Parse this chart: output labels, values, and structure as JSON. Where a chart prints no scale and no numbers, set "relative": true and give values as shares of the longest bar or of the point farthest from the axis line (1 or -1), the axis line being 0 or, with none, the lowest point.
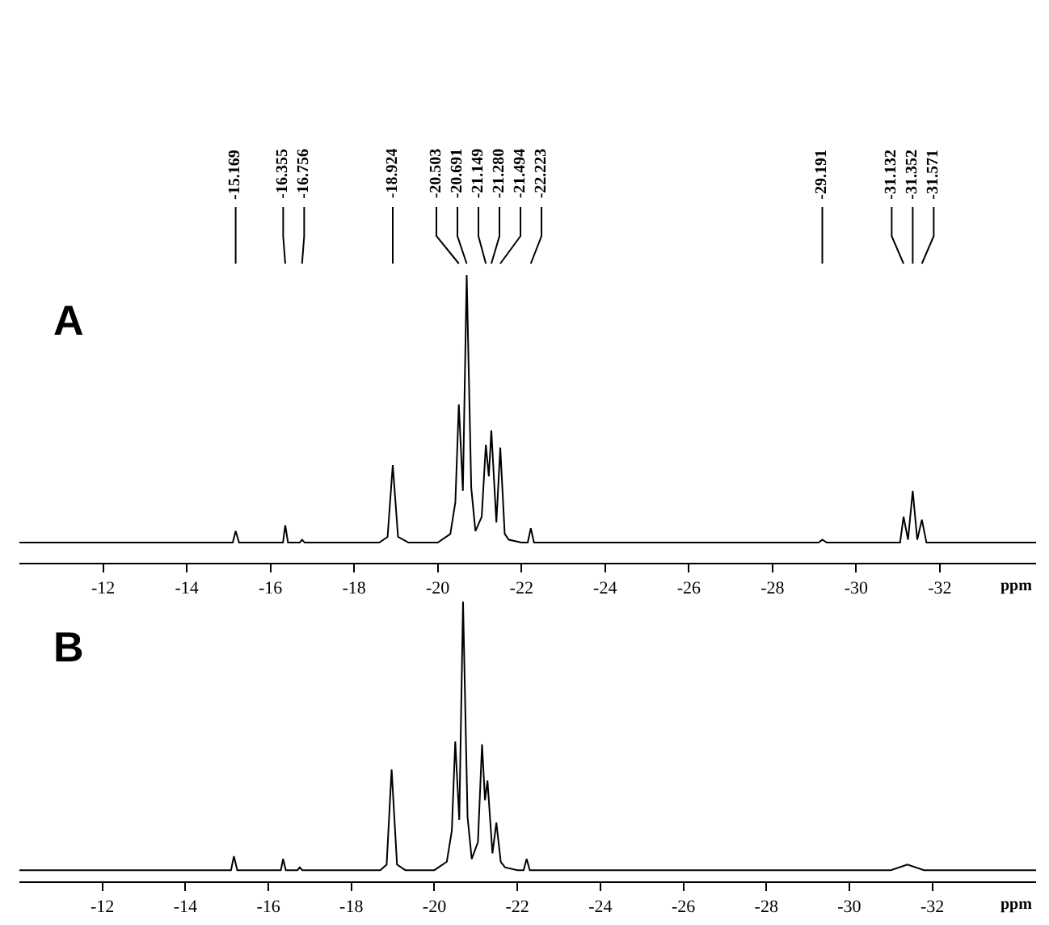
{
  "chart_data": [
    {
      "type": "line",
      "title": "A",
      "xlabel": "ppm",
      "relative": true,
      "xlim": [
        -10,
        -34.3
      ],
      "xticks": [
        -12,
        -14,
        -16,
        -18,
        -20,
        -22,
        -24,
        -26,
        -28,
        -30,
        -32
      ],
      "marker": "none",
      "line_style": "solid",
      "annotations": [
        {
          "text": "-15.169",
          "x": -15.169
        },
        {
          "text": "-16.355",
          "x": -16.355
        },
        {
          "text": "-16.756",
          "x": -16.756
        },
        {
          "text": "-18.924",
          "x": -18.924
        },
        {
          "text": "-20.503",
          "x": -20.503
        },
        {
          "text": "-20.691",
          "x": -20.691
        },
        {
          "text": "-21.149",
          "x": -21.149
        },
        {
          "text": "-21.280",
          "x": -21.28
        },
        {
          "text": "-21.494",
          "x": -21.494
        },
        {
          "text": "-22.223",
          "x": -22.223
        },
        {
          "text": "-29.191",
          "x": -29.191
        },
        {
          "text": "-31.132",
          "x": -31.132
        },
        {
          "text": "-31.352",
          "x": -31.352
        },
        {
          "text": "-31.571",
          "x": -31.571
        }
      ],
      "series": [
        {
          "color": "#000000",
          "x": [
            -10,
            -11,
            -12,
            -13,
            -14,
            -14.9,
            -15.1,
            -15.169,
            -15.25,
            -16.0,
            -16.3,
            -16.355,
            -16.42,
            -16.7,
            -16.756,
            -16.82,
            -17.5,
            -18.6,
            -18.8,
            -18.924,
            -19.05,
            -19.3,
            -20.0,
            -20.3,
            -20.42,
            -20.503,
            -20.6,
            -20.691,
            -20.8,
            -20.9,
            -21.05,
            -21.149,
            -21.22,
            -21.28,
            -21.4,
            -21.494,
            -21.6,
            -21.7,
            -22.0,
            -22.15,
            -22.223,
            -22.3,
            -23,
            -25,
            -27,
            -29.1,
            -29.191,
            -29.3,
            -30.5,
            -31.05,
            -31.132,
            -31.24,
            -31.352,
            -31.46,
            -31.571,
            -31.68,
            -33,
            -34.3
          ],
          "values": [
            0.07,
            0.07,
            0.07,
            0.07,
            0.07,
            0.07,
            0.07,
            0.11,
            0.07,
            0.07,
            0.07,
            0.13,
            0.07,
            0.07,
            0.08,
            0.07,
            0.07,
            0.07,
            0.09,
            0.34,
            0.09,
            0.07,
            0.07,
            0.1,
            0.21,
            0.55,
            0.25,
            1,
            0.26,
            0.11,
            0.16,
            0.41,
            0.3,
            0.46,
            0.14,
            0.4,
            0.1,
            0.08,
            0.07,
            0.07,
            0.12,
            0.07,
            0.07,
            0.07,
            0.07,
            0.07,
            0.08,
            0.07,
            0.07,
            0.07,
            0.16,
            0.08,
            0.25,
            0.08,
            0.15,
            0.07,
            0.07,
            0.07
          ]
        }
      ]
    },
    {
      "type": "line",
      "title": "B",
      "xlabel": "ppm",
      "relative": true,
      "xlim": [
        -10,
        -34.5
      ],
      "xticks": [
        -12,
        -14,
        -16,
        -18,
        -20,
        -22,
        -24,
        -26,
        -28,
        -30,
        -32
      ],
      "marker": "none",
      "line_style": "solid",
      "series": [
        {
          "color": "#000000",
          "x": [
            -10,
            -11,
            -12,
            -13,
            -14,
            -14.9,
            -15.1,
            -15.169,
            -15.25,
            -16.0,
            -16.3,
            -16.355,
            -16.42,
            -16.7,
            -16.756,
            -16.82,
            -17.5,
            -18.7,
            -18.85,
            -18.97,
            -19.1,
            -19.3,
            -20.0,
            -20.3,
            -20.42,
            -20.503,
            -20.6,
            -20.691,
            -20.8,
            -20.9,
            -21.05,
            -21.149,
            -21.22,
            -21.28,
            -21.4,
            -21.494,
            -21.6,
            -21.7,
            -22.0,
            -22.15,
            -22.223,
            -22.3,
            -23,
            -25,
            -27,
            -29,
            -30.5,
            -31.0,
            -31.4,
            -31.8,
            -33,
            -34.5
          ],
          "values": [
            0.04,
            0.04,
            0.04,
            0.04,
            0.04,
            0.04,
            0.04,
            0.09,
            0.04,
            0.04,
            0.04,
            0.08,
            0.04,
            0.04,
            0.05,
            0.04,
            0.04,
            0.04,
            0.06,
            0.4,
            0.06,
            0.04,
            0.04,
            0.07,
            0.18,
            0.5,
            0.22,
            1,
            0.23,
            0.08,
            0.14,
            0.49,
            0.29,
            0.36,
            0.1,
            0.21,
            0.07,
            0.05,
            0.04,
            0.04,
            0.08,
            0.04,
            0.04,
            0.04,
            0.04,
            0.04,
            0.04,
            0.04,
            0.06,
            0.04,
            0.04,
            0.04
          ]
        }
      ]
    }
  ]
}
